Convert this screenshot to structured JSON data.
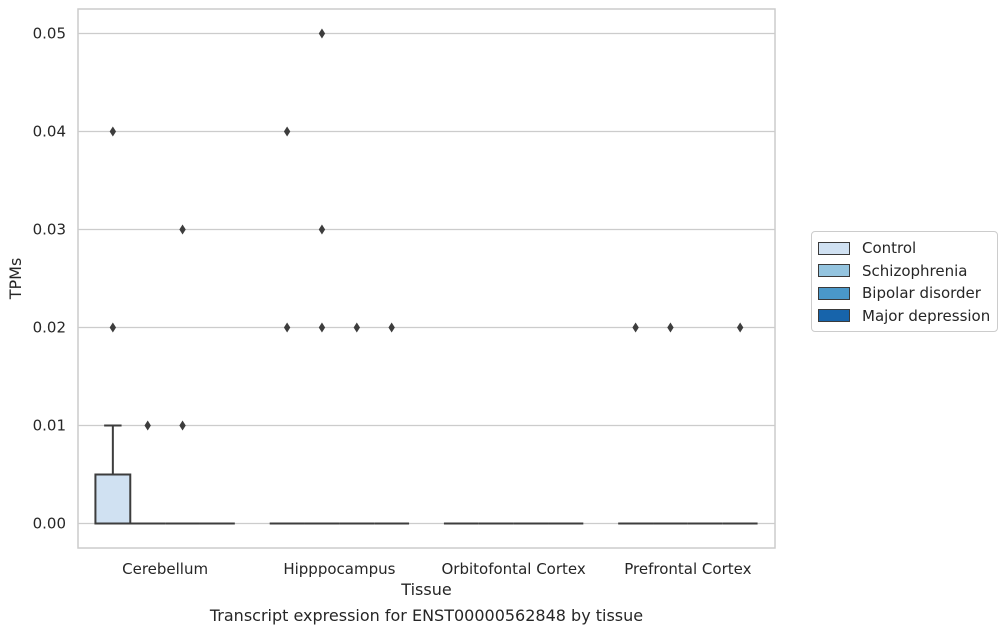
{
  "chart_data": {
    "type": "box",
    "title": "Transcript expression for ENST00000562848 by tissue",
    "xlabel": "Tissue",
    "ylabel": "TPMs",
    "ylim": [
      -0.0025,
      0.0525
    ],
    "yticks": [
      "0.00",
      "0.01",
      "0.02",
      "0.03",
      "0.04",
      "0.05"
    ],
    "grid": true,
    "legend_position": "right",
    "categories": [
      "Cerebellum",
      "Hipppocampus",
      "Orbitofontal Cortex",
      "Prefrontal Cortex"
    ],
    "series": [
      {
        "name": "Control",
        "color": "#d0e1f2",
        "boxes": [
          {
            "q1": 0,
            "median": 0,
            "q3": 0.005,
            "whisker_low": 0,
            "whisker_high": 0.01,
            "outliers": [
              0.02,
              0.04
            ]
          },
          {
            "q1": 0,
            "median": 0,
            "q3": 0,
            "whisker_low": 0,
            "whisker_high": 0,
            "outliers": [
              0.02,
              0.04
            ]
          },
          {
            "q1": 0,
            "median": 0,
            "q3": 0,
            "whisker_low": 0,
            "whisker_high": 0,
            "outliers": []
          },
          {
            "q1": 0,
            "median": 0,
            "q3": 0,
            "whisker_low": 0,
            "whisker_high": 0,
            "outliers": [
              0.02
            ]
          }
        ]
      },
      {
        "name": "Schizophrenia",
        "color": "#94c4df",
        "boxes": [
          {
            "q1": 0,
            "median": 0,
            "q3": 0,
            "whisker_low": 0,
            "whisker_high": 0,
            "outliers": [
              0.01
            ]
          },
          {
            "q1": 0,
            "median": 0,
            "q3": 0,
            "whisker_low": 0,
            "whisker_high": 0,
            "outliers": [
              0.02,
              0.03,
              0.05
            ]
          },
          {
            "q1": 0,
            "median": 0,
            "q3": 0,
            "whisker_low": 0,
            "whisker_high": 0,
            "outliers": []
          },
          {
            "q1": 0,
            "median": 0,
            "q3": 0,
            "whisker_low": 0,
            "whisker_high": 0,
            "outliers": [
              0.02
            ]
          }
        ]
      },
      {
        "name": "Bipolar disorder",
        "color": "#4a98c9",
        "boxes": [
          {
            "q1": 0,
            "median": 0,
            "q3": 0,
            "whisker_low": 0,
            "whisker_high": 0,
            "outliers": [
              0.01,
              0.03
            ]
          },
          {
            "q1": 0,
            "median": 0,
            "q3": 0,
            "whisker_low": 0,
            "whisker_high": 0,
            "outliers": [
              0.02
            ]
          },
          {
            "q1": 0,
            "median": 0,
            "q3": 0,
            "whisker_low": 0,
            "whisker_high": 0,
            "outliers": []
          },
          {
            "q1": 0,
            "median": 0,
            "q3": 0,
            "whisker_low": 0,
            "whisker_high": 0,
            "outliers": []
          }
        ]
      },
      {
        "name": "Major depression",
        "color": "#1764ab",
        "boxes": [
          {
            "q1": 0,
            "median": 0,
            "q3": 0,
            "whisker_low": 0,
            "whisker_high": 0,
            "outliers": []
          },
          {
            "q1": 0,
            "median": 0,
            "q3": 0,
            "whisker_low": 0,
            "whisker_high": 0,
            "outliers": [
              0.02
            ]
          },
          {
            "q1": 0,
            "median": 0,
            "q3": 0,
            "whisker_low": 0,
            "whisker_high": 0,
            "outliers": []
          },
          {
            "q1": 0,
            "median": 0,
            "q3": 0,
            "whisker_low": 0,
            "whisker_high": 0,
            "outliers": [
              0.02
            ]
          }
        ]
      }
    ]
  }
}
